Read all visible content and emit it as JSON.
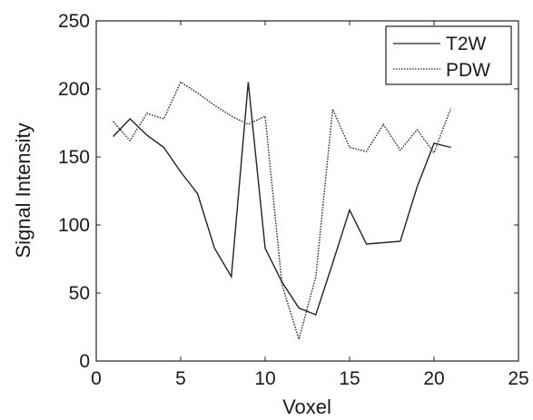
{
  "chart_data": {
    "type": "line",
    "title": "",
    "xlabel": "Voxel",
    "ylabel": "Signal Intensity",
    "xlim": [
      0,
      25
    ],
    "ylim": [
      0,
      250
    ],
    "xticks": [
      0,
      5,
      10,
      15,
      20,
      25
    ],
    "yticks": [
      0,
      50,
      100,
      150,
      200,
      250
    ],
    "grid": false,
    "legend": {
      "position": "top-right"
    },
    "x": [
      1,
      2,
      3,
      4,
      5,
      6,
      7,
      8,
      9,
      10,
      11,
      12,
      13,
      14,
      15,
      16,
      17,
      18,
      19,
      20,
      21
    ],
    "series": [
      {
        "name": "T2W",
        "style": "solid",
        "color": "#222222",
        "values": [
          165,
          178,
          166,
          157,
          139,
          123,
          83,
          62,
          205,
          83,
          58,
          39,
          34,
          72,
          111,
          86,
          87,
          88,
          128,
          160,
          157
        ]
      },
      {
        "name": "PDW",
        "style": "dotted",
        "color": "#222222",
        "values": [
          176,
          162,
          182,
          178,
          205,
          197,
          188,
          180,
          174,
          180,
          56,
          16,
          62,
          185,
          157,
          154,
          174,
          155,
          170,
          153,
          186
        ]
      }
    ]
  }
}
